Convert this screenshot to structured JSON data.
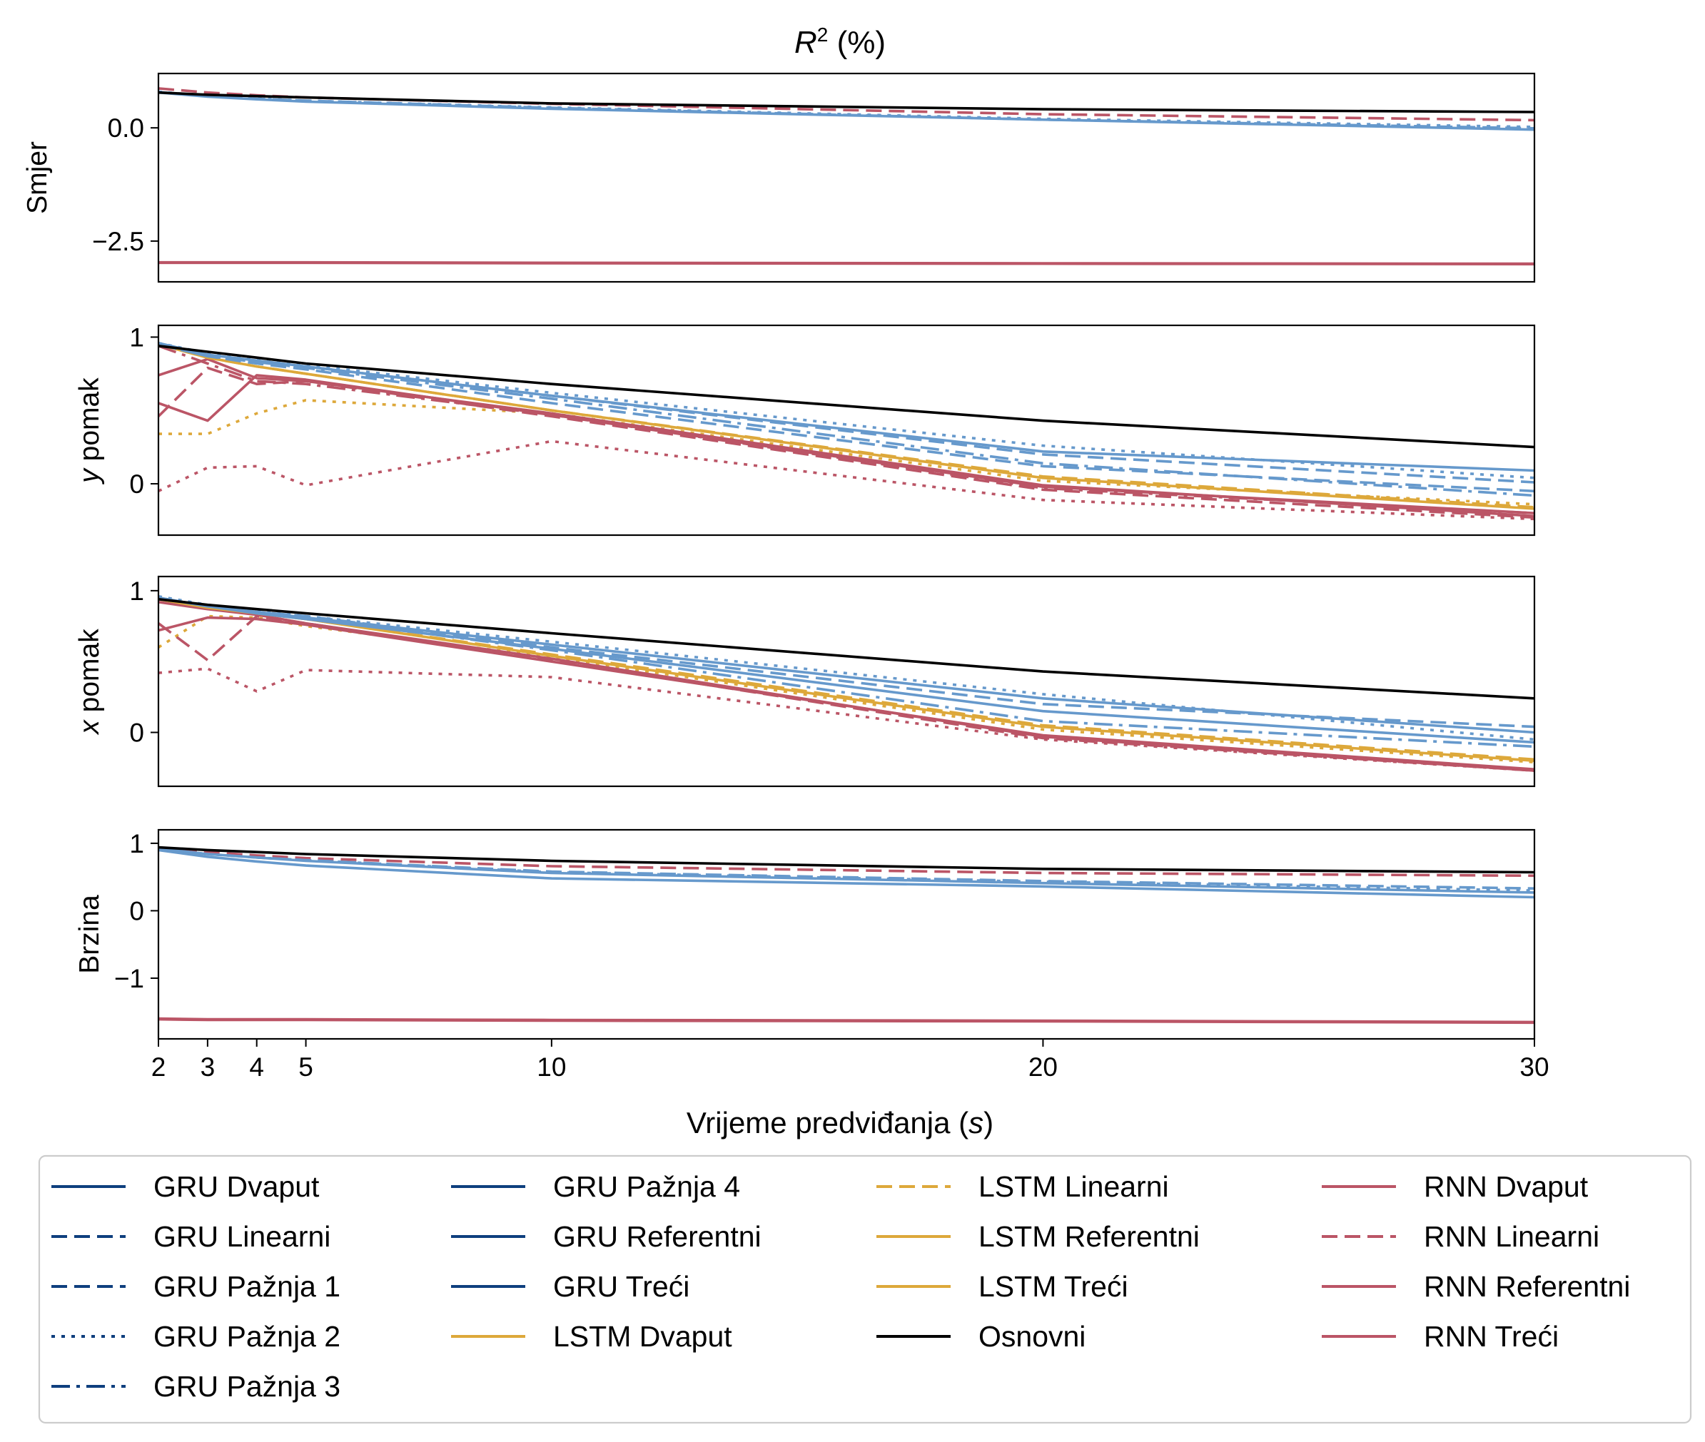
{
  "chart_data": {
    "type": "line",
    "title": "R² (%)",
    "xlabel": "Vrijeme predviđanja (s)",
    "x": [
      2,
      3,
      4,
      5,
      10,
      20,
      30
    ],
    "xticks": [
      "2",
      "3",
      "4",
      "5",
      "10",
      "20",
      "30"
    ],
    "xlim": [
      2,
      30
    ],
    "grid": false,
    "legend_position": "bottom",
    "colors": {
      "gru": "#0e3f7e",
      "gru_light": "#6699cc",
      "lstm": "#dda83a",
      "rnn": "#bb5566",
      "baseline": "#000000"
    },
    "legend": [
      {
        "label": "GRU Dvaput",
        "color": "#0e3f7e",
        "dash": "solid"
      },
      {
        "label": "GRU Linearni",
        "color": "#0e3f7e",
        "dash": "dashed"
      },
      {
        "label": "GRU Pažnja 1",
        "color": "#0e3f7e",
        "dash": "dashed"
      },
      {
        "label": "GRU Pažnja 2",
        "color": "#0e3f7e",
        "dash": "dotted"
      },
      {
        "label": "GRU Pažnja 3",
        "color": "#0e3f7e",
        "dash": "dashdot"
      },
      {
        "label": "GRU Pažnja 4",
        "color": "#0e3f7e",
        "dash": "solid"
      },
      {
        "label": "GRU Referentni",
        "color": "#0e3f7e",
        "dash": "solid"
      },
      {
        "label": "GRU Treći",
        "color": "#0e3f7e",
        "dash": "solid"
      },
      {
        "label": "LSTM Dvaput",
        "color": "#dda83a",
        "dash": "solid"
      },
      {
        "label": "LSTM Linearni",
        "color": "#dda83a",
        "dash": "dashed"
      },
      {
        "label": "LSTM Referentni",
        "color": "#dda83a",
        "dash": "solid"
      },
      {
        "label": "LSTM Treći",
        "color": "#dda83a",
        "dash": "solid"
      },
      {
        "label": "Osnovni",
        "color": "#000000",
        "dash": "solid"
      },
      {
        "label": "RNN Dvaput",
        "color": "#bb5566",
        "dash": "solid"
      },
      {
        "label": "RNN Linearni",
        "color": "#bb5566",
        "dash": "dashed"
      },
      {
        "label": "RNN Referentni",
        "color": "#bb5566",
        "dash": "solid"
      },
      {
        "label": "RNN Treći",
        "color": "#bb5566",
        "dash": "solid"
      }
    ],
    "panels": [
      {
        "ylabel": "Smjer",
        "ylim": [
          -3.4,
          1.2
        ],
        "yticks": [
          0,
          -2.5
        ],
        "ytick_labels": [
          "0.0",
          "−2.5"
        ],
        "series": [
          {
            "color": "#bb5566",
            "dash": "solid",
            "values": [
              -2.97,
              -2.97,
              -2.97,
              -2.97,
              -2.98,
              -2.99,
              -3.0
            ]
          },
          {
            "color": "#bb5566",
            "dash": "solid",
            "values": [
              -2.98,
              -2.98,
              -2.98,
              -2.98,
              -2.99,
              -3.0,
              -3.01
            ]
          },
          {
            "color": "#6699cc",
            "dash": "dotted",
            "values": [
              0.8,
              0.7,
              0.65,
              0.6,
              0.45,
              0.2,
              0.02
            ]
          },
          {
            "color": "#6699cc",
            "dash": "dashed",
            "values": [
              0.79,
              0.7,
              0.64,
              0.6,
              0.44,
              0.18,
              -0.01
            ]
          },
          {
            "color": "#bb5566",
            "dash": "dashed",
            "values": [
              0.87,
              0.78,
              0.72,
              0.67,
              0.53,
              0.3,
              0.17
            ]
          },
          {
            "color": "#6699cc",
            "dash": "solid",
            "values": [
              0.78,
              0.69,
              0.63,
              0.58,
              0.42,
              0.18,
              -0.04
            ]
          },
          {
            "color": "#000000",
            "dash": "solid",
            "values": [
              0.78,
              0.73,
              0.7,
              0.67,
              0.54,
              0.41,
              0.35
            ]
          }
        ]
      },
      {
        "ylabel": "y pomak",
        "ylim": [
          -0.35,
          1.08
        ],
        "yticks": [
          1,
          0
        ],
        "ytick_labels": [
          "1",
          "0"
        ],
        "series": [
          {
            "color": "#bb5566",
            "dash": "dotted",
            "values": [
              -0.05,
              0.11,
              0.12,
              -0.01,
              0.29,
              -0.11,
              -0.24
            ]
          },
          {
            "color": "#dda83a",
            "dash": "dotted",
            "values": [
              0.34,
              0.34,
              0.48,
              0.57,
              0.48,
              0.02,
              -0.14
            ]
          },
          {
            "color": "#bb5566",
            "dash": "solid",
            "values": [
              0.55,
              0.43,
              0.74,
              0.71,
              0.47,
              -0.02,
              -0.2
            ]
          },
          {
            "color": "#bb5566",
            "dash": "solid",
            "values": [
              0.74,
              0.85,
              0.72,
              0.7,
              0.48,
              -0.01,
              -0.22
            ]
          },
          {
            "color": "#bb5566",
            "dash": "dashed",
            "values": [
              0.46,
              0.79,
              0.68,
              0.7,
              0.46,
              -0.04,
              -0.23
            ]
          },
          {
            "color": "#bb5566",
            "dash": "dashdot",
            "values": [
              0.94,
              0.82,
              0.7,
              0.68,
              0.47,
              -0.03,
              -0.2
            ]
          },
          {
            "color": "#dda83a",
            "dash": "solid",
            "values": [
              0.95,
              0.86,
              0.8,
              0.75,
              0.5,
              0.04,
              -0.17
            ]
          },
          {
            "color": "#dda83a",
            "dash": "dashed",
            "values": [
              0.95,
              0.86,
              0.8,
              0.75,
              0.5,
              0.05,
              -0.16
            ]
          },
          {
            "color": "#6699cc",
            "dash": "dashed",
            "values": [
              0.95,
              0.87,
              0.82,
              0.78,
              0.55,
              0.12,
              -0.05
            ]
          },
          {
            "color": "#6699cc",
            "dash": "dashdot",
            "values": [
              0.95,
              0.87,
              0.83,
              0.79,
              0.58,
              0.14,
              -0.08
            ]
          },
          {
            "color": "#6699cc",
            "dash": "dashed",
            "values": [
              0.95,
              0.88,
              0.83,
              0.8,
              0.6,
              0.2,
              0.01
            ]
          },
          {
            "color": "#6699cc",
            "dash": "dotted",
            "values": [
              0.96,
              0.89,
              0.85,
              0.81,
              0.62,
              0.26,
              0.04
            ]
          },
          {
            "color": "#6699cc",
            "dash": "solid",
            "values": [
              0.96,
              0.88,
              0.84,
              0.8,
              0.6,
              0.22,
              0.09
            ]
          },
          {
            "color": "#000000",
            "dash": "solid",
            "values": [
              0.94,
              0.9,
              0.86,
              0.82,
              0.68,
              0.43,
              0.25
            ]
          }
        ]
      },
      {
        "ylabel": "x pomak",
        "ylim": [
          -0.38,
          1.1
        ],
        "yticks": [
          1,
          0
        ],
        "ytick_labels": [
          "1",
          "0"
        ],
        "series": [
          {
            "color": "#bb5566",
            "dash": "dotted",
            "values": [
              0.42,
              0.45,
              0.29,
              0.44,
              0.39,
              -0.05,
              -0.27
            ]
          },
          {
            "color": "#dda83a",
            "dash": "dotted",
            "values": [
              0.6,
              0.82,
              0.81,
              0.75,
              0.53,
              0.02,
              -0.21
            ]
          },
          {
            "color": "#bb5566",
            "dash": "solid",
            "values": [
              0.72,
              0.81,
              0.8,
              0.76,
              0.5,
              -0.02,
              -0.26
            ]
          },
          {
            "color": "#bb5566",
            "dash": "dashed",
            "values": [
              0.77,
              0.51,
              0.82,
              0.77,
              0.51,
              -0.04,
              -0.27
            ]
          },
          {
            "color": "#bb5566",
            "dash": "solid",
            "values": [
              0.92,
              0.87,
              0.83,
              0.77,
              0.52,
              -0.03,
              -0.27
            ]
          },
          {
            "color": "#dda83a",
            "dash": "solid",
            "values": [
              0.94,
              0.88,
              0.84,
              0.8,
              0.54,
              0.04,
              -0.2
            ]
          },
          {
            "color": "#dda83a",
            "dash": "dashed",
            "values": [
              0.95,
              0.89,
              0.84,
              0.8,
              0.55,
              0.05,
              -0.19
            ]
          },
          {
            "color": "#6699cc",
            "dash": "dashdot",
            "values": [
              0.95,
              0.89,
              0.85,
              0.81,
              0.58,
              0.08,
              -0.1
            ]
          },
          {
            "color": "#6699cc",
            "dash": "dashed",
            "values": [
              0.95,
              0.89,
              0.85,
              0.82,
              0.6,
              0.2,
              0.04
            ]
          },
          {
            "color": "#6699cc",
            "dash": "dotted",
            "values": [
              0.96,
              0.9,
              0.86,
              0.82,
              0.64,
              0.27,
              -0.05
            ]
          },
          {
            "color": "#6699cc",
            "dash": "solid",
            "values": [
              0.95,
              0.89,
              0.85,
              0.81,
              0.62,
              0.24,
              0.0
            ]
          },
          {
            "color": "#6699cc",
            "dash": "solid",
            "values": [
              0.95,
              0.89,
              0.84,
              0.8,
              0.59,
              0.15,
              -0.07
            ]
          },
          {
            "color": "#000000",
            "dash": "solid",
            "values": [
              0.94,
              0.9,
              0.87,
              0.84,
              0.7,
              0.43,
              0.24
            ]
          }
        ]
      },
      {
        "ylabel": "Brzina",
        "ylim": [
          -1.9,
          1.2
        ],
        "yticks": [
          1,
          0,
          -1
        ],
        "ytick_labels": [
          "1",
          "0",
          "−1"
        ],
        "series": [
          {
            "color": "#bb5566",
            "dash": "solid",
            "values": [
              -1.6,
              -1.61,
              -1.61,
              -1.61,
              -1.62,
              -1.63,
              -1.65
            ]
          },
          {
            "color": "#bb5566",
            "dash": "solid",
            "values": [
              -1.61,
              -1.62,
              -1.62,
              -1.62,
              -1.63,
              -1.64,
              -1.66
            ]
          },
          {
            "color": "#bb5566",
            "dash": "dashed",
            "values": [
              0.93,
              0.87,
              0.82,
              0.78,
              0.66,
              0.56,
              0.52
            ]
          },
          {
            "color": "#6699cc",
            "dash": "dashed",
            "values": [
              0.92,
              0.84,
              0.79,
              0.75,
              0.58,
              0.44,
              0.33
            ]
          },
          {
            "color": "#6699cc",
            "dash": "dotted",
            "values": [
              0.92,
              0.84,
              0.79,
              0.75,
              0.57,
              0.43,
              0.3
            ]
          },
          {
            "color": "#6699cc",
            "dash": "solid",
            "values": [
              0.92,
              0.84,
              0.79,
              0.74,
              0.56,
              0.41,
              0.27
            ]
          },
          {
            "color": "#6699cc",
            "dash": "solid",
            "values": [
              0.9,
              0.8,
              0.73,
              0.67,
              0.48,
              0.36,
              0.2
            ]
          },
          {
            "color": "#000000",
            "dash": "solid",
            "values": [
              0.94,
              0.9,
              0.87,
              0.84,
              0.74,
              0.62,
              0.57
            ]
          }
        ]
      }
    ]
  }
}
